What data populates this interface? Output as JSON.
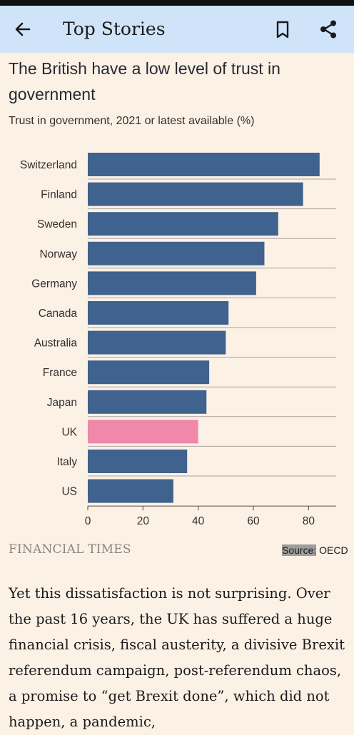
{
  "app_bar": {
    "title": "Top Stories",
    "icons": [
      "back-arrow-icon",
      "bookmark-icon",
      "share-icon"
    ]
  },
  "article": {
    "chart_title": "The British have a low level of trust in government",
    "chart_subtitle": "Trust in government, 2021 or latest available (%)",
    "logo_text": "FINANCIAL TIMES",
    "source_label": "Source:",
    "source_value": "OECD",
    "body": "Yet this dissatisfaction is not surprising. Over the past 16 years, the UK has suffered a huge financial crisis, fiscal austerity, a divisive Brexit referendum campaign, post-referendum chaos, a promise to “get Brexit done”, which did not happen, a pandemic,"
  },
  "colors": {
    "bar_default": "#3f628e",
    "bar_highlight": "#f088aa",
    "background": "#fcf1e5",
    "app_bar": "#cfe4f8"
  },
  "chart_data": {
    "type": "bar",
    "orientation": "horizontal",
    "categories": [
      "Switzerland",
      "Finland",
      "Sweden",
      "Norway",
      "Germany",
      "Canada",
      "Australia",
      "France",
      "Japan",
      "UK",
      "Italy",
      "US"
    ],
    "values": [
      84,
      78,
      69,
      64,
      61,
      51,
      50,
      44,
      43,
      40,
      36,
      31
    ],
    "highlight": "UK",
    "xlim": [
      0,
      90
    ],
    "xticks": [
      0,
      20,
      40,
      60,
      80
    ],
    "grid": false
  }
}
